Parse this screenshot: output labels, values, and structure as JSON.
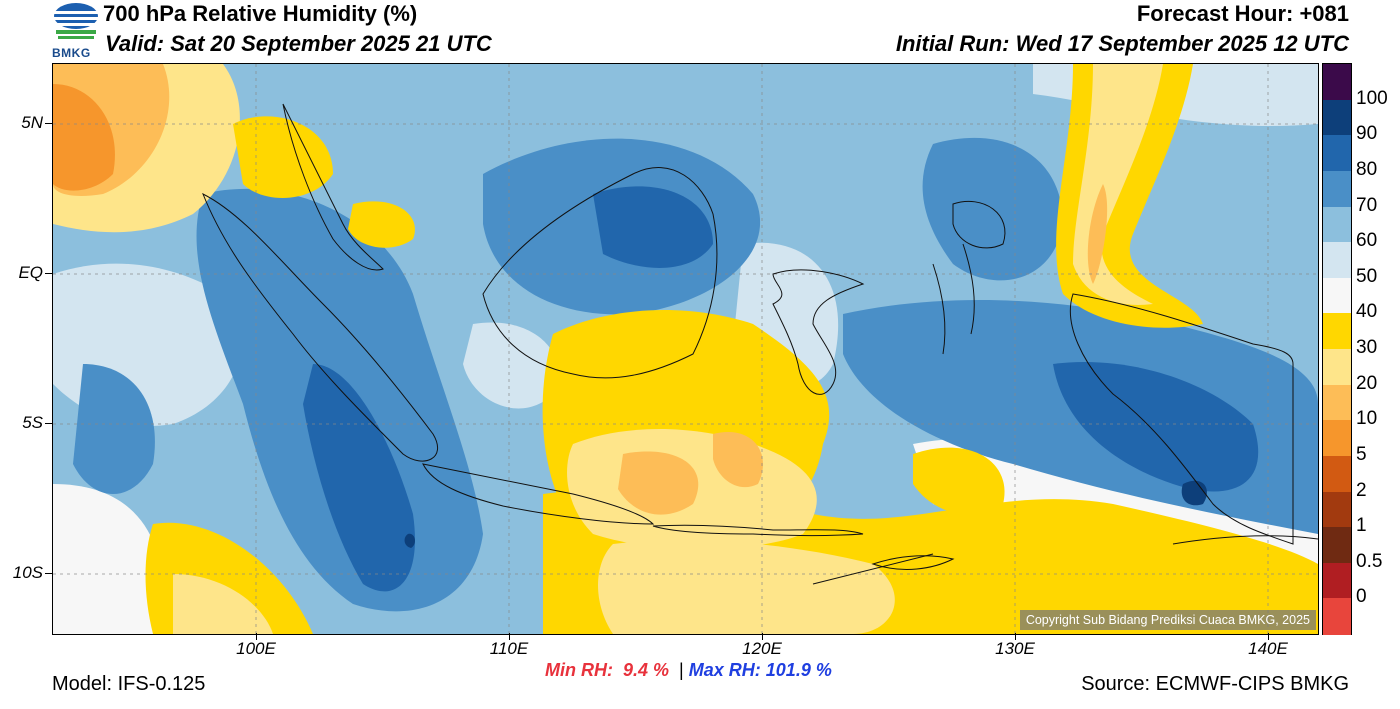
{
  "header": {
    "title": "700 hPa Relative Humidity (%)",
    "valid": "Valid: Sat 20 September 2025 21 UTC",
    "forecast_hour": "Forecast Hour: +081",
    "initial_run": "Initial Run: Wed 17 September 2025 12 UTC"
  },
  "logo": {
    "text": "BMKG",
    "icon": "bmkg-logo-icon"
  },
  "map": {
    "region": "Indonesia",
    "lat_labels": [
      "5N",
      "EQ",
      "5S",
      "10S"
    ],
    "lon_labels": [
      "100E",
      "110E",
      "120E",
      "130E",
      "140E"
    ],
    "lon_range": [
      92,
      142
    ],
    "lat_range": [
      -12,
      7
    ],
    "gridlines": true,
    "dry_area_color": "#ffd700",
    "moist_area_color": "#2166ac"
  },
  "colorbar": {
    "labels": [
      "100",
      "90",
      "80",
      "70",
      "60",
      "50",
      "40",
      "30",
      "20",
      "10",
      "5",
      "2",
      "1",
      "0.5",
      "0"
    ],
    "colors": [
      "#3b0a4a",
      "#0d3f7a",
      "#2166ac",
      "#4a8fc7",
      "#8cbfdd",
      "#d3e5f0",
      "#f7f7f7",
      "#ffd700",
      "#fee58a",
      "#fdbd57",
      "#f6962c",
      "#d25a12",
      "#a23a0f",
      "#6f2a12",
      "#b01e22",
      "#e8453c"
    ]
  },
  "copyright": "Copyright Sub Bidang Prediksi Cuaca BMKG, 2025",
  "stats": {
    "min_label": "Min RH:",
    "min_value": "9.4 %",
    "separator": "|",
    "max_label": "Max RH:",
    "max_value": "101.9 %"
  },
  "footer": {
    "model": "Model: IFS-0.125",
    "source": "Source: ECMWF-CIPS BMKG"
  }
}
